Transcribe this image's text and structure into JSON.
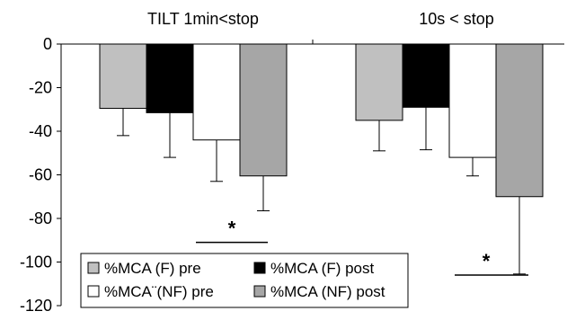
{
  "chart_data": {
    "type": "bar",
    "categories": [
      "TILT 1min<stop",
      "10s < stop"
    ],
    "series": [
      {
        "name": "%MCA (F) pre",
        "color": "#c0c0c0",
        "values": [
          -29.5,
          -35
        ],
        "errors": [
          12.5,
          14
        ]
      },
      {
        "name": "%MCA (F) post",
        "color": "#000000",
        "values": [
          -31.5,
          -29
        ],
        "errors": [
          20.5,
          19.5
        ]
      },
      {
        "name": "%MCA¨(NF) pre",
        "color": "#ffffff",
        "values": [
          -44,
          -52
        ],
        "errors": [
          19,
          8.5
        ]
      },
      {
        "name": "%MCA (NF) post",
        "color": "#a6a6a6",
        "values": [
          -60.5,
          -70
        ],
        "errors": [
          16,
          35.5
        ]
      }
    ],
    "ylim": [
      -120,
      0
    ],
    "yticks": [
      0,
      -20,
      -40,
      -60,
      -80,
      -100,
      -120
    ],
    "xlabel": "",
    "ylabel": "",
    "grid": false,
    "legend_position": "bottom-left",
    "significance": [
      {
        "label": "*",
        "category_index": 0,
        "y": -91
      },
      {
        "label": "*",
        "category_index": 1,
        "y": -106
      }
    ]
  }
}
